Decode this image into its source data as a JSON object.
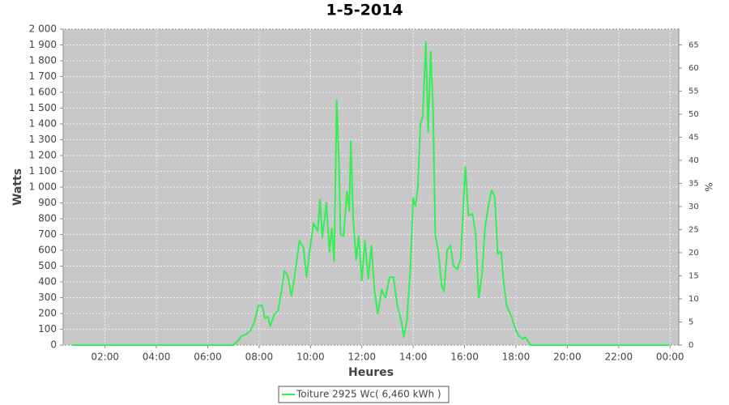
{
  "chart_data": {
    "type": "line",
    "title": "1-5-2014",
    "x_label": "Heures",
    "y_label": "Watts",
    "y2_label": "%",
    "x": [
      0.74,
      2,
      4,
      6,
      7.0,
      7.2,
      7.29,
      7.51,
      7.66,
      7.82,
      7.97,
      8.12,
      8.22,
      8.34,
      8.43,
      8.58,
      8.74,
      8.89,
      8.98,
      9.11,
      9.26,
      9.42,
      9.57,
      9.72,
      9.85,
      9.97,
      10.12,
      10.28,
      10.37,
      10.46,
      10.62,
      10.74,
      10.83,
      10.92,
      11.02,
      11.11,
      11.17,
      11.29,
      11.42,
      11.51,
      11.57,
      11.66,
      11.78,
      11.88,
      12.0,
      12.12,
      12.25,
      12.37,
      12.49,
      12.62,
      12.77,
      12.92,
      13.08,
      13.23,
      13.38,
      13.54,
      13.63,
      13.75,
      13.88,
      14.0,
      14.09,
      14.18,
      14.28,
      14.37,
      14.49,
      14.58,
      14.68,
      14.77,
      14.86,
      14.98,
      15.11,
      15.2,
      15.32,
      15.45,
      15.57,
      15.72,
      15.85,
      16.03,
      16.15,
      16.31,
      16.43,
      16.55,
      16.68,
      16.8,
      16.95,
      17.05,
      17.17,
      17.29,
      17.42,
      17.51,
      17.63,
      17.78,
      17.94,
      18.09,
      18.25,
      18.37,
      18.49,
      18.58,
      19,
      21,
      23,
      23.97
    ],
    "series": [
      {
        "name": "Toiture 2925 Wc( 6,460 kWh )",
        "color": "#33ee55",
        "values": [
          0,
          0,
          0,
          0,
          0,
          30,
          55,
          70,
          90,
          150,
          250,
          250,
          170,
          180,
          120,
          190,
          220,
          360,
          470,
          440,
          310,
          480,
          660,
          620,
          430,
          600,
          770,
          720,
          920,
          680,
          900,
          590,
          740,
          530,
          1550,
          1150,
          700,
          690,
          970,
          850,
          1290,
          800,
          540,
          690,
          410,
          660,
          420,
          630,
          350,
          200,
          350,
          300,
          430,
          430,
          250,
          150,
          50,
          150,
          460,
          930,
          880,
          1000,
          1400,
          1450,
          1920,
          1350,
          1860,
          1500,
          700,
          590,
          370,
          340,
          600,
          630,
          500,
          480,
          550,
          1130,
          820,
          830,
          700,
          300,
          450,
          750,
          900,
          980,
          940,
          580,
          590,
          420,
          250,
          200,
          120,
          60,
          40,
          50,
          20,
          0,
          0,
          0,
          0,
          0
        ]
      }
    ],
    "xlim": [
      0.37,
      24.34
    ],
    "xticks": [
      {
        "value": 2,
        "label": "02:00"
      },
      {
        "value": 4,
        "label": "04:00"
      },
      {
        "value": 6,
        "label": "06:00"
      },
      {
        "value": 8,
        "label": "08:00"
      },
      {
        "value": 10,
        "label": "10:00"
      },
      {
        "value": 12,
        "label": "12:00"
      },
      {
        "value": 14,
        "label": "14:00"
      },
      {
        "value": 16,
        "label": "16:00"
      },
      {
        "value": 18,
        "label": "18:00"
      },
      {
        "value": 20,
        "label": "20:00"
      },
      {
        "value": 22,
        "label": "22:00"
      },
      {
        "value": 24,
        "label": "00:00"
      }
    ],
    "ylim": [
      0,
      2000
    ],
    "yticks": [
      0,
      100,
      200,
      300,
      400,
      500,
      600,
      700,
      800,
      900,
      {
        "value": 1000,
        "label": "1 000"
      },
      {
        "value": 1100,
        "label": "1 100"
      },
      {
        "value": 1200,
        "label": "1 200"
      },
      {
        "value": 1300,
        "label": "1 300"
      },
      {
        "value": 1400,
        "label": "1 400"
      },
      {
        "value": 1500,
        "label": "1 500"
      },
      {
        "value": 1600,
        "label": "1 600"
      },
      {
        "value": 1700,
        "label": "1 700"
      },
      {
        "value": 1800,
        "label": "1 800"
      },
      {
        "value": 1900,
        "label": "1 900"
      },
      {
        "value": 2000,
        "label": "2 000"
      }
    ],
    "y2lim": [
      0,
      68.4
    ],
    "y2ticks": [
      0,
      5,
      10,
      15,
      20,
      25,
      30,
      35,
      40,
      45,
      50,
      55,
      60,
      65
    ],
    "grid": true,
    "legend": "bottom"
  }
}
